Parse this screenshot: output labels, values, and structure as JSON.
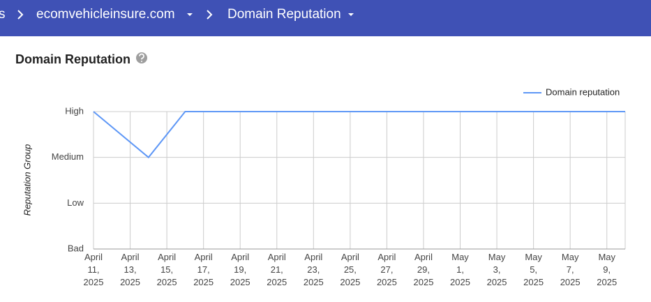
{
  "header": {
    "breadcrumbs": [
      "s",
      "ecomvehicleinsure.com",
      "Domain Reputation"
    ]
  },
  "section_title": "Domain Reputation",
  "chart_data": {
    "type": "line",
    "ylabel": "Reputation Group",
    "x": [
      "2025-04-11",
      "2025-04-14",
      "2025-04-16",
      "2025-04-17",
      "2025-04-18",
      "2025-04-19",
      "2025-04-20",
      "2025-04-21",
      "2025-04-22",
      "2025-04-23",
      "2025-04-24",
      "2025-04-25",
      "2025-04-26",
      "2025-04-27",
      "2025-04-28",
      "2025-04-29",
      "2025-04-30",
      "2025-05-01",
      "2025-05-02",
      "2025-05-03",
      "2025-05-04",
      "2025-05-05",
      "2025-05-06",
      "2025-05-07",
      "2025-05-08",
      "2025-05-09",
      "2025-05-10"
    ],
    "series": [
      {
        "name": "Domain reputation",
        "color": "#5e97f6",
        "values": [
          3,
          2,
          3,
          3,
          3,
          3,
          3,
          3,
          3,
          3,
          3,
          3,
          3,
          3,
          3,
          3,
          3,
          3,
          3,
          3,
          3,
          3,
          3,
          3,
          3,
          3,
          3
        ]
      }
    ],
    "xlim": [
      "2025-04-11",
      "2025-05-10"
    ],
    "xticks": [
      {
        "value": "2025-04-11",
        "label": "April 11, 2025"
      },
      {
        "value": "2025-04-13",
        "label": "April 13, 2025"
      },
      {
        "value": "2025-04-15",
        "label": "April 15, 2025"
      },
      {
        "value": "2025-04-17",
        "label": "April 17, 2025"
      },
      {
        "value": "2025-04-19",
        "label": "April 19, 2025"
      },
      {
        "value": "2025-04-21",
        "label": "April 21, 2025"
      },
      {
        "value": "2025-04-23",
        "label": "April 23, 2025"
      },
      {
        "value": "2025-04-25",
        "label": "April 25, 2025"
      },
      {
        "value": "2025-04-27",
        "label": "April 27, 2025"
      },
      {
        "value": "2025-04-29",
        "label": "April 29, 2025"
      },
      {
        "value": "2025-05-01",
        "label": "May 1, 2025"
      },
      {
        "value": "2025-05-03",
        "label": "May 3, 2025"
      },
      {
        "value": "2025-05-05",
        "label": "May 5, 2025"
      },
      {
        "value": "2025-05-07",
        "label": "May 7, 2025"
      },
      {
        "value": "2025-05-09",
        "label": "May 9, 2025"
      }
    ],
    "ylim": [
      0,
      3
    ],
    "yticks": [
      {
        "value": 0,
        "label": "Bad"
      },
      {
        "value": 1,
        "label": "Low"
      },
      {
        "value": 2,
        "label": "Medium"
      },
      {
        "value": 3,
        "label": "High"
      }
    ],
    "grid": true,
    "legend": "top-right"
  }
}
